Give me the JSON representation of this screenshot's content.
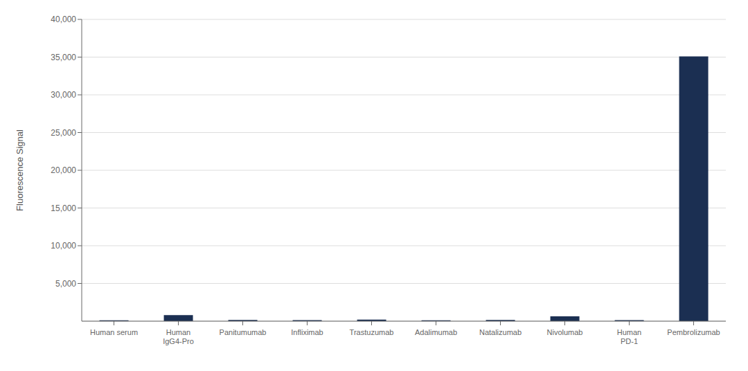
{
  "chart_data": {
    "type": "bar",
    "ylabel": "Fluorescence Signal",
    "categories": [
      "Human serum",
      "Human\nIgG4-Pro",
      "Panitumumab",
      "Infliximab",
      "Trastuzumab",
      "Adalimumab",
      "Natalizumab",
      "Nivolumab",
      "Human\nPD-1",
      "Pembrolizumab"
    ],
    "values": [
      120,
      800,
      150,
      130,
      200,
      120,
      150,
      650,
      130,
      35100
    ],
    "color": "#1b2f52",
    "ylim": [
      0,
      40000
    ],
    "yticks": [
      {
        "value": 5000,
        "label": "5,000"
      },
      {
        "value": 10000,
        "label": "10,000"
      },
      {
        "value": 15000,
        "label": "15,000"
      },
      {
        "value": 20000,
        "label": "20,000"
      },
      {
        "value": 25000,
        "label": "25,000"
      },
      {
        "value": 30000,
        "label": "30,000"
      },
      {
        "value": 35000,
        "label": "35,000"
      },
      {
        "value": 40000,
        "label": "40,000"
      }
    ],
    "grid": true
  }
}
